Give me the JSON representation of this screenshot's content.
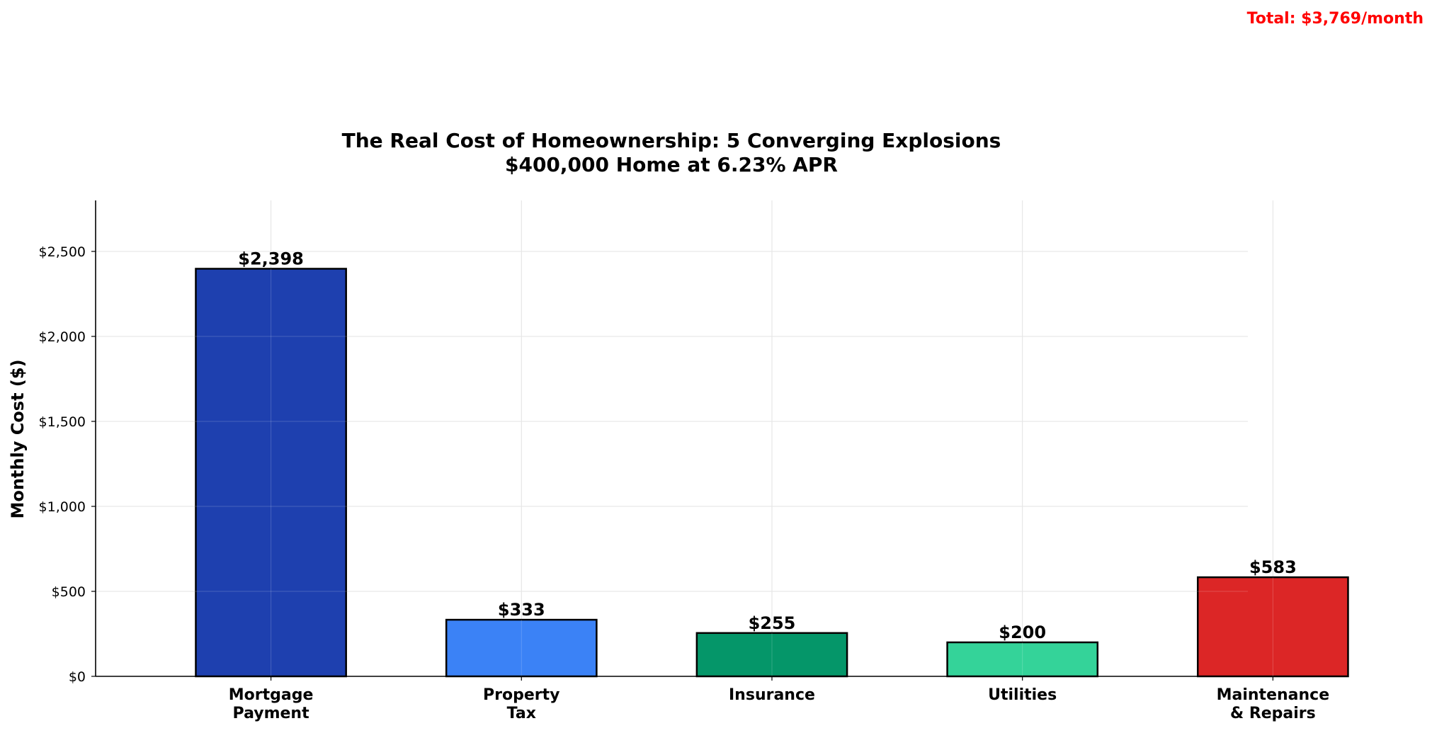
{
  "chart_data": {
    "type": "bar",
    "title_line1": "The Real Cost of Homeownership: 5 Converging Explosions",
    "title_line2": "$400,000 Home at 6.23% APR",
    "total_annotation": "Total: $3,769/month",
    "xlabel": "",
    "ylabel": "Monthly Cost ($)",
    "ylim": [
      0,
      2800
    ],
    "yticks": [
      0,
      500,
      1000,
      1500,
      2000,
      2500
    ],
    "ytick_labels": [
      "$0",
      "$500",
      "$1,000",
      "$1,500",
      "$2,000",
      "$2,500"
    ],
    "categories": [
      [
        "Mortgage",
        "Payment"
      ],
      [
        "Property",
        "Tax"
      ],
      [
        "Insurance"
      ],
      [
        "Utilities"
      ],
      [
        "Maintenance",
        "& Repairs"
      ]
    ],
    "values": [
      2398,
      333,
      255,
      200,
      583
    ],
    "value_labels": [
      "$2,398",
      "$333",
      "$255",
      "$200",
      "$583"
    ],
    "colors": [
      "#1e40af",
      "#3b82f6",
      "#059669",
      "#34d399",
      "#dc2626"
    ],
    "annotation_color": "#ff0000",
    "grid": true
  }
}
